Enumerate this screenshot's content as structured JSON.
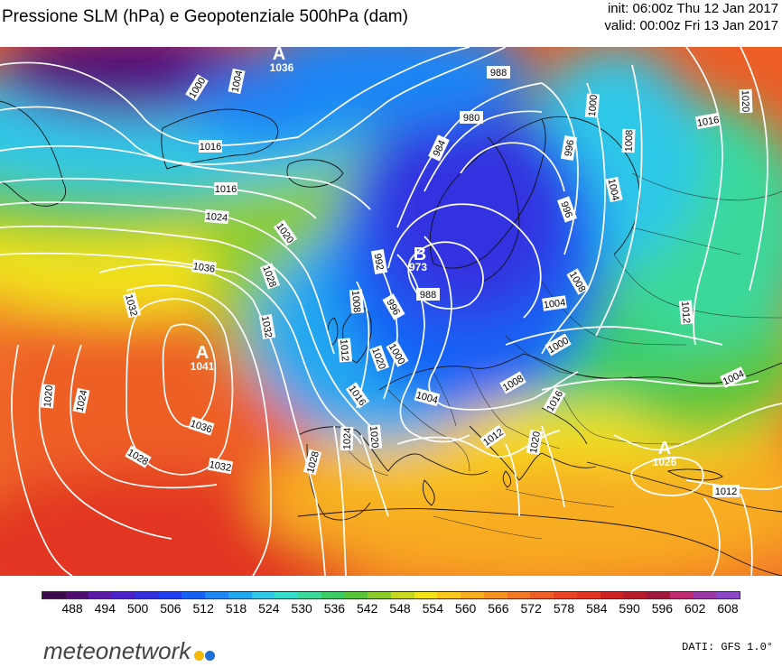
{
  "title": "Pressione SLM (hPa) e Geopotenziale 500hPa (dam)",
  "run": {
    "init": "init: 06:00z Thu 12 Jan 2017",
    "valid": "valid: 00:00z Fri 13 Jan 2017"
  },
  "centers": [
    {
      "letter": "A",
      "value": "1036"
    },
    {
      "letter": "B",
      "value": "973"
    },
    {
      "letter": "A",
      "value": "1041"
    },
    {
      "letter": "A",
      "value": "1026"
    }
  ],
  "isobar_labels": [
    "1004",
    "1000",
    "1016",
    "1016",
    "1024",
    "1020",
    "1036",
    "1028",
    "1032",
    "1032",
    "1036",
    "1032",
    "1020",
    "1024",
    "1028",
    "1028",
    "1024",
    "1020",
    "1016",
    "1012",
    "1008",
    "992",
    "996",
    "1000",
    "1004",
    "988",
    "984",
    "980",
    "988",
    "996",
    "996",
    "1000",
    "1004",
    "1008",
    "1016",
    "1020",
    "1012",
    "1004",
    "1000",
    "1008",
    "1012",
    "1016",
    "1020",
    "1004",
    "1012",
    "1020",
    "1008"
  ],
  "colorbar": {
    "ticks": [
      "488",
      "494",
      "500",
      "506",
      "512",
      "518",
      "524",
      "530",
      "536",
      "542",
      "548",
      "554",
      "560",
      "566",
      "572",
      "578",
      "584",
      "590",
      "596",
      "602",
      "608"
    ],
    "colors": [
      "#3a0a4a",
      "#4e0f70",
      "#5a19a8",
      "#4a22c8",
      "#3330e0",
      "#2140f2",
      "#1560f5",
      "#1e85f5",
      "#22a8f0",
      "#2ec8e8",
      "#36dccb",
      "#3ad89a",
      "#3ccc66",
      "#5ac43a",
      "#8ccc2a",
      "#c8d820",
      "#f2e21a",
      "#f8c81c",
      "#f8ac20",
      "#f69224",
      "#f27826",
      "#ee5e26",
      "#ea4424",
      "#e23422",
      "#cf2222",
      "#b81c2a",
      "#a0183a",
      "#c02a70",
      "#9a38a8",
      "#8a48c8"
    ]
  },
  "logo": {
    "text": "meteonetwork",
    "dot_colors": [
      "#f5b800",
      "#1e6fd9"
    ]
  },
  "source": "DATI: GFS 1.0°"
}
